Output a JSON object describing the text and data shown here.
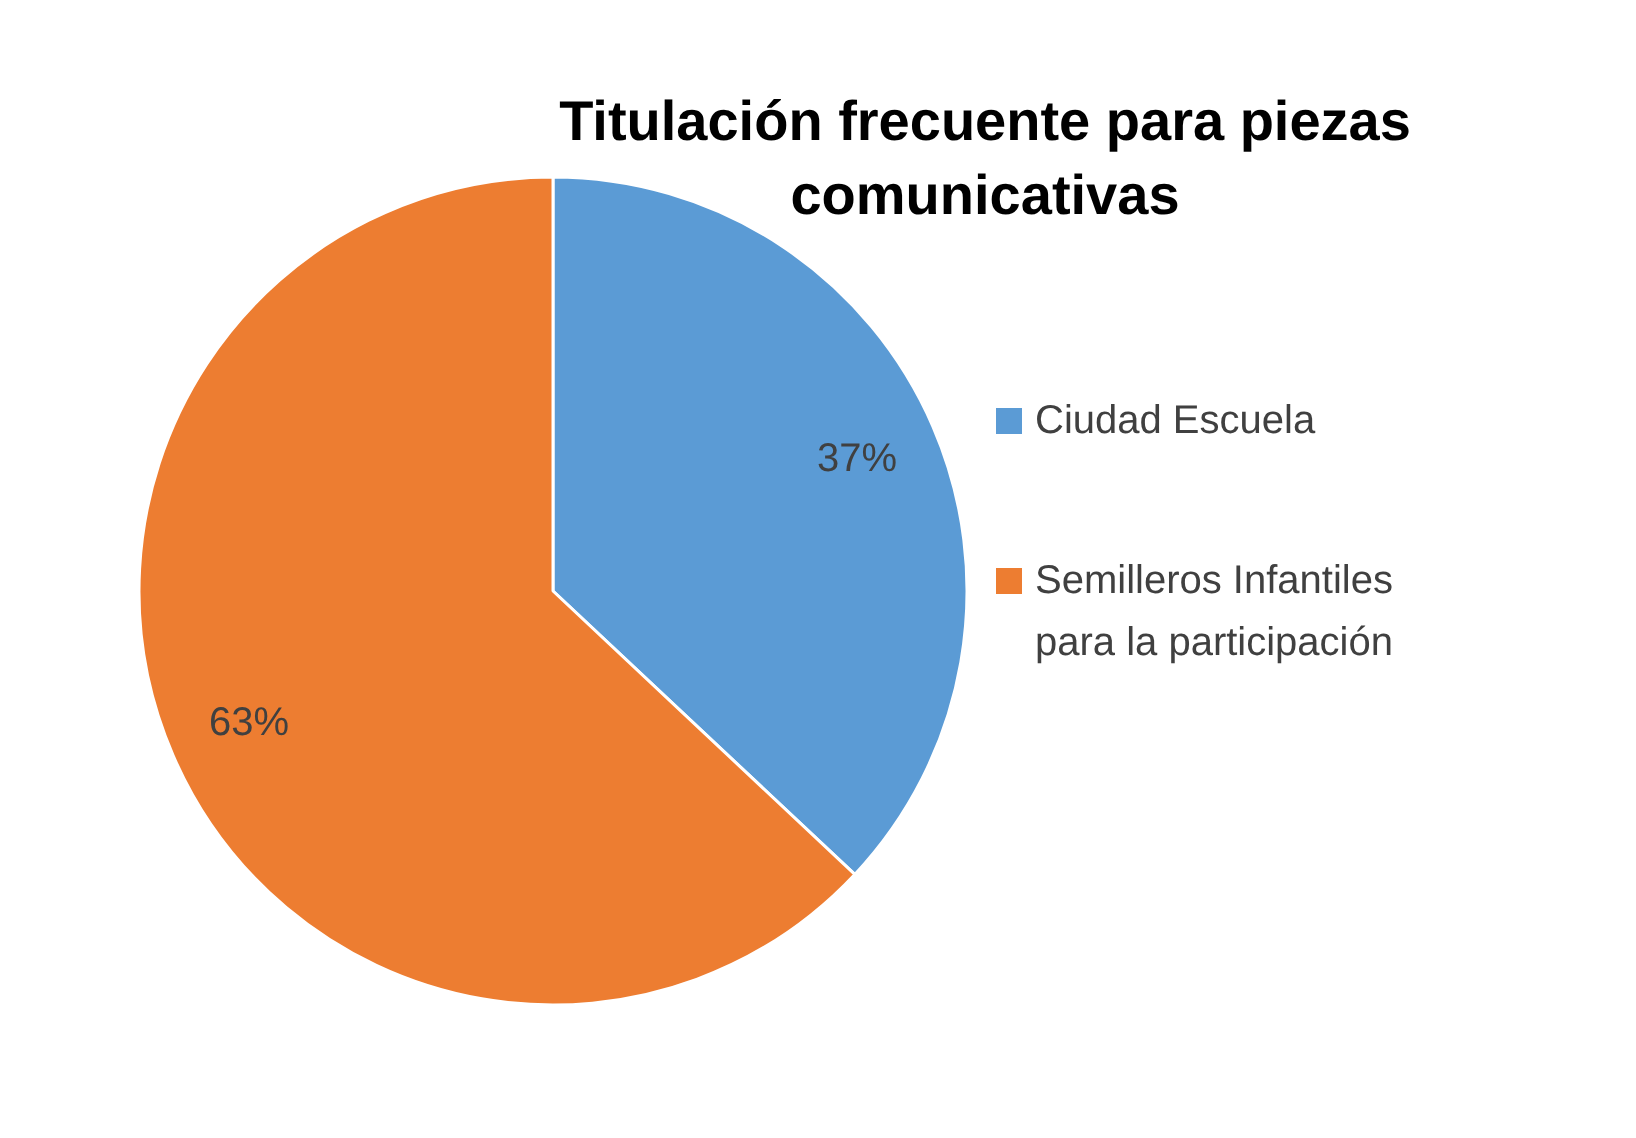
{
  "chart_data": {
    "type": "pie",
    "title": "Titulación frecuente para piezas comunicativas",
    "categories": [
      "Ciudad Escuela",
      "Semilleros Infantiles para la participación"
    ],
    "values": [
      37,
      63
    ],
    "colors": [
      "#5b9bd5",
      "#ed7d31"
    ],
    "value_labels": [
      "37%",
      "63%"
    ],
    "legend": "right"
  }
}
